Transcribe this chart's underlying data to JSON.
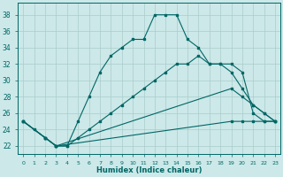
{
  "xlabel": "Humidex (Indice chaleur)",
  "bg_color": "#cce8e8",
  "grid_color": "#aacccc",
  "line_color": "#006666",
  "xlim": [
    -0.5,
    23.5
  ],
  "ylim": [
    21,
    39.5
  ],
  "yticks": [
    22,
    24,
    26,
    28,
    30,
    32,
    34,
    36,
    38
  ],
  "xticks": [
    0,
    1,
    2,
    3,
    4,
    5,
    6,
    7,
    8,
    9,
    10,
    11,
    12,
    13,
    14,
    15,
    16,
    17,
    18,
    19,
    20,
    21,
    22,
    23
  ],
  "line1_x": [
    0,
    1,
    2,
    3,
    4,
    5,
    6,
    7,
    8,
    9,
    10,
    11,
    12,
    13,
    14,
    15,
    16,
    17,
    18,
    19,
    20,
    21,
    22,
    23
  ],
  "line1_y": [
    25,
    24,
    23,
    22,
    22,
    25,
    28,
    31,
    33,
    34,
    35,
    35,
    38,
    38,
    38,
    35,
    34,
    32,
    32,
    32,
    31,
    26,
    25,
    25
  ],
  "line2_x": [
    0,
    2,
    3,
    4,
    5,
    6,
    7,
    8,
    9,
    10,
    11,
    12,
    13,
    14,
    15,
    16,
    17,
    18,
    19,
    20,
    21,
    22,
    23
  ],
  "line2_y": [
    25,
    23,
    22,
    22,
    23,
    24,
    25,
    26,
    27,
    28,
    29,
    30,
    31,
    32,
    32,
    33,
    32,
    32,
    31,
    29,
    27,
    26,
    25
  ],
  "line3_x": [
    0,
    2,
    3,
    19,
    20,
    21,
    22,
    23
  ],
  "line3_y": [
    25,
    23,
    22,
    29,
    28,
    27,
    26,
    25
  ],
  "line4_x": [
    0,
    2,
    3,
    19,
    20,
    21,
    22,
    23
  ],
  "line4_y": [
    25,
    23,
    22,
    25,
    25,
    25,
    25,
    25
  ]
}
